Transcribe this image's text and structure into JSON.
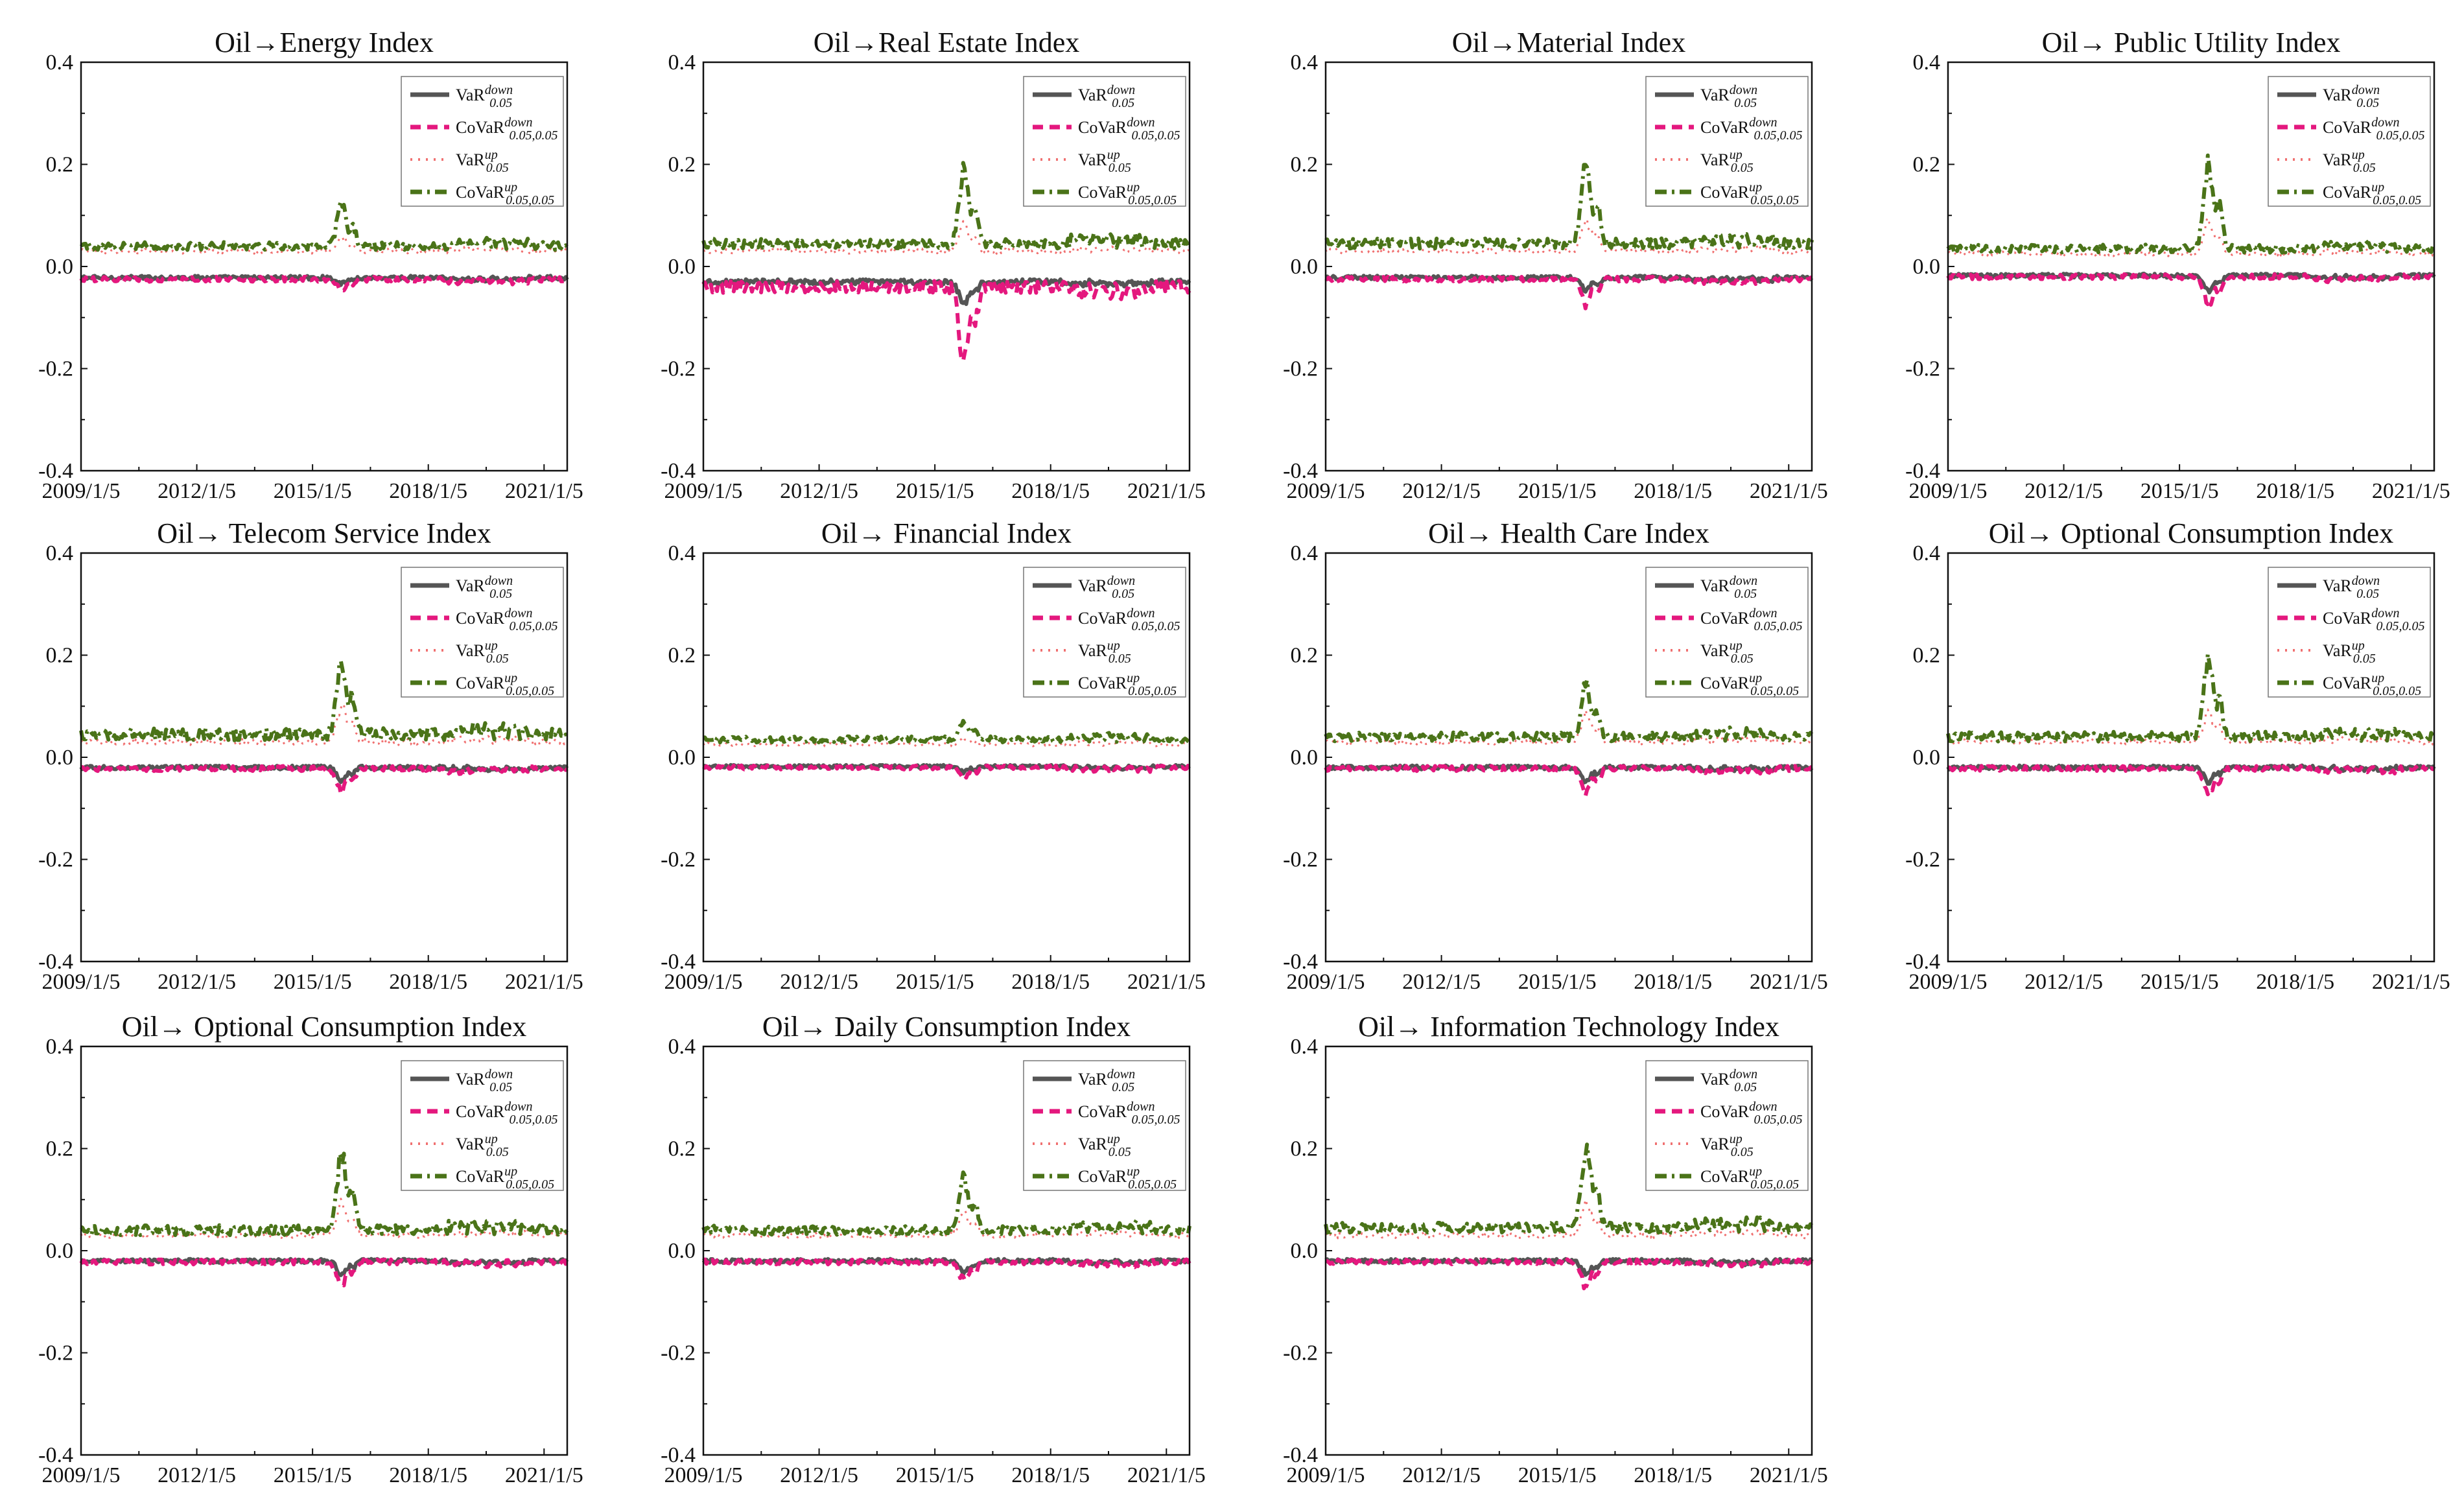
{
  "figure": {
    "x_tick_labels": [
      "2009/1/5",
      "2012/1/5",
      "2015/1/5",
      "2018/1/5",
      "2021/1/5"
    ],
    "y_tick_labels": [
      "0.4",
      "0.2",
      "0.0",
      "-0.2",
      "-0.4"
    ],
    "legend": {
      "var_down": "VaR",
      "var_down_sup": "down",
      "var_down_sub": "0.05",
      "covar_down": "CoVaR",
      "covar_down_sup": "down",
      "covar_down_sub": "0.05,0.05",
      "var_up": "VaR",
      "var_up_sup": "up",
      "var_up_sub": "0.05",
      "covar_up": "CoVaR",
      "covar_up_sup": "up",
      "covar_up_sub": "0.05,0.05"
    },
    "colors": {
      "var_down": "#555555",
      "covar_down": "#e4187e",
      "var_up": "#f07070",
      "covar_up": "#4a7318"
    }
  },
  "chart_data": [
    {
      "type": "line",
      "title": "Oil→Energy Index",
      "ylim": [
        -0.4,
        0.4
      ],
      "xlim": [
        2009.0,
        2021.6
      ],
      "series": [
        {
          "name": "VaR down 0.05",
          "base": -0.022,
          "noise": 0.004,
          "spike": -0.035
        },
        {
          "name": "CoVaR down 0.05,0.05",
          "base": -0.025,
          "noise": 0.005,
          "spike": -0.045
        },
        {
          "name": "VaR up 0.05",
          "base": 0.03,
          "noise": 0.005,
          "spike": 0.06
        },
        {
          "name": "CoVaR up 0.05,0.05",
          "base": 0.04,
          "noise": 0.008,
          "spike": 0.135
        }
      ]
    },
    {
      "type": "line",
      "title": "Oil→Real Estate Index",
      "ylim": [
        -0.4,
        0.4
      ],
      "xlim": [
        2009.0,
        2021.6
      ],
      "series": [
        {
          "name": "VaR down 0.05",
          "base": -0.03,
          "noise": 0.005,
          "spike": -0.08
        },
        {
          "name": "CoVaR down 0.05,0.05",
          "base": -0.04,
          "noise": 0.012,
          "spike": -0.2
        },
        {
          "name": "VaR up 0.05",
          "base": 0.03,
          "noise": 0.005,
          "spike": 0.09
        },
        {
          "name": "CoVaR up 0.05,0.05",
          "base": 0.045,
          "noise": 0.01,
          "spike": 0.2
        }
      ]
    },
    {
      "type": "line",
      "title": "Oil→Material Index",
      "ylim": [
        -0.4,
        0.4
      ],
      "xlim": [
        2009.0,
        2021.6
      ],
      "series": [
        {
          "name": "VaR down 0.05",
          "base": -0.022,
          "noise": 0.004,
          "spike": -0.05
        },
        {
          "name": "CoVaR down 0.05,0.05",
          "base": -0.025,
          "noise": 0.005,
          "spike": -0.08
        },
        {
          "name": "VaR up 0.05",
          "base": 0.03,
          "noise": 0.005,
          "spike": 0.1
        },
        {
          "name": "CoVaR up 0.05,0.05",
          "base": 0.045,
          "noise": 0.01,
          "spike": 0.22
        }
      ]
    },
    {
      "type": "line",
      "title": "Oil→ Public Utility Index",
      "ylim": [
        -0.4,
        0.4
      ],
      "xlim": [
        2009.0,
        2021.6
      ],
      "series": [
        {
          "name": "VaR down 0.05",
          "base": -0.018,
          "noise": 0.004,
          "spike": -0.05
        },
        {
          "name": "CoVaR down 0.05,0.05",
          "base": -0.02,
          "noise": 0.005,
          "spike": -0.08
        },
        {
          "name": "VaR up 0.05",
          "base": 0.025,
          "noise": 0.005,
          "spike": 0.1
        },
        {
          "name": "CoVaR up 0.05,0.05",
          "base": 0.035,
          "noise": 0.008,
          "spike": 0.22
        }
      ]
    },
    {
      "type": "line",
      "title": "Oil→ Telecom Service Index",
      "ylim": [
        -0.4,
        0.4
      ],
      "xlim": [
        2009.0,
        2021.6
      ],
      "series": [
        {
          "name": "VaR down 0.05",
          "base": -0.02,
          "noise": 0.004,
          "spike": -0.05
        },
        {
          "name": "CoVaR down 0.05,0.05",
          "base": -0.022,
          "noise": 0.005,
          "spike": -0.07
        },
        {
          "name": "VaR up 0.05",
          "base": 0.03,
          "noise": 0.006,
          "spike": 0.11
        },
        {
          "name": "CoVaR up 0.05,0.05",
          "base": 0.045,
          "noise": 0.012,
          "spike": 0.21
        }
      ]
    },
    {
      "type": "line",
      "title": "Oil→ Financial Index",
      "ylim": [
        -0.4,
        0.4
      ],
      "xlim": [
        2009.0,
        2021.6
      ],
      "series": [
        {
          "name": "VaR down 0.05",
          "base": -0.018,
          "noise": 0.003,
          "spike": -0.03
        },
        {
          "name": "CoVaR down 0.05,0.05",
          "base": -0.02,
          "noise": 0.004,
          "spike": -0.04
        },
        {
          "name": "VaR up 0.05",
          "base": 0.025,
          "noise": 0.004,
          "spike": 0.04
        },
        {
          "name": "CoVaR up 0.05,0.05",
          "base": 0.035,
          "noise": 0.006,
          "spike": 0.07
        }
      ]
    },
    {
      "type": "line",
      "title": "Oil→ Health Care Index",
      "ylim": [
        -0.4,
        0.4
      ],
      "xlim": [
        2009.0,
        2021.6
      ],
      "series": [
        {
          "name": "VaR down 0.05",
          "base": -0.02,
          "noise": 0.004,
          "spike": -0.05
        },
        {
          "name": "CoVaR down 0.05,0.05",
          "base": -0.022,
          "noise": 0.005,
          "spike": -0.075
        },
        {
          "name": "VaR up 0.05",
          "base": 0.03,
          "noise": 0.005,
          "spike": 0.09
        },
        {
          "name": "CoVaR up 0.05,0.05",
          "base": 0.04,
          "noise": 0.009,
          "spike": 0.155
        }
      ]
    },
    {
      "type": "line",
      "title": "Oil→ Optional Consumption Index",
      "ylim": [
        -0.4,
        0.4
      ],
      "xlim": [
        2009.0,
        2021.6
      ],
      "series": [
        {
          "name": "VaR down 0.05",
          "base": -0.02,
          "noise": 0.004,
          "spike": -0.05
        },
        {
          "name": "CoVaR down 0.05,0.05",
          "base": -0.022,
          "noise": 0.005,
          "spike": -0.08
        },
        {
          "name": "VaR up 0.05",
          "base": 0.03,
          "noise": 0.005,
          "spike": 0.1
        },
        {
          "name": "CoVaR up 0.05,0.05",
          "base": 0.04,
          "noise": 0.01,
          "spike": 0.21
        }
      ]
    },
    {
      "type": "line",
      "title": "Oil→ Optional Consumption Index",
      "ylim": [
        -0.4,
        0.4
      ],
      "xlim": [
        2009.0,
        2021.6
      ],
      "series": [
        {
          "name": "VaR down 0.05",
          "base": -0.02,
          "noise": 0.004,
          "spike": -0.05
        },
        {
          "name": "CoVaR down 0.05,0.05",
          "base": -0.022,
          "noise": 0.005,
          "spike": -0.075
        },
        {
          "name": "VaR up 0.05",
          "base": 0.03,
          "noise": 0.005,
          "spike": 0.1
        },
        {
          "name": "CoVaR up 0.05,0.05",
          "base": 0.04,
          "noise": 0.01,
          "spike": 0.215
        }
      ]
    },
    {
      "type": "line",
      "title": "Oil→ Daily Consumption Index",
      "ylim": [
        -0.4,
        0.4
      ],
      "xlim": [
        2009.0,
        2021.6
      ],
      "series": [
        {
          "name": "VaR down 0.05",
          "base": -0.02,
          "noise": 0.004,
          "spike": -0.045
        },
        {
          "name": "CoVaR down 0.05,0.05",
          "base": -0.022,
          "noise": 0.005,
          "spike": -0.065
        },
        {
          "name": "VaR up 0.05",
          "base": 0.03,
          "noise": 0.005,
          "spike": 0.08
        },
        {
          "name": "CoVaR up 0.05,0.05",
          "base": 0.04,
          "noise": 0.009,
          "spike": 0.16
        }
      ]
    },
    {
      "type": "line",
      "title": "Oil→ Information Technology Index",
      "ylim": [
        -0.4,
        0.4
      ],
      "xlim": [
        2009.0,
        2021.6
      ],
      "series": [
        {
          "name": "VaR down 0.05",
          "base": -0.02,
          "noise": 0.004,
          "spike": -0.05
        },
        {
          "name": "CoVaR down 0.05,0.05",
          "base": -0.022,
          "noise": 0.005,
          "spike": -0.08
        },
        {
          "name": "VaR up 0.05",
          "base": 0.03,
          "noise": 0.006,
          "spike": 0.1
        },
        {
          "name": "CoVaR up 0.05,0.05",
          "base": 0.045,
          "noise": 0.01,
          "spike": 0.22
        }
      ]
    }
  ]
}
